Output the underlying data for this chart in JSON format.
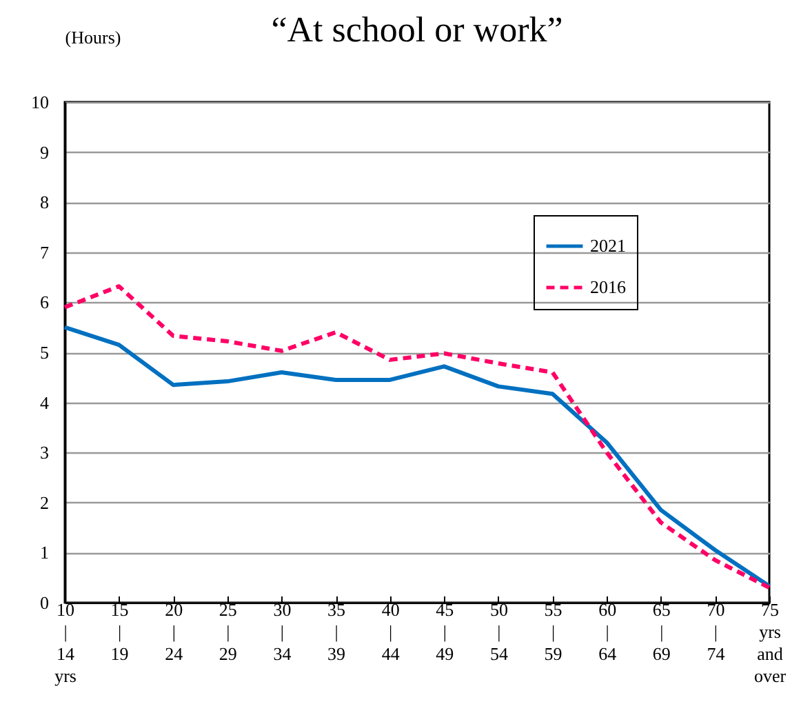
{
  "chart_data": {
    "type": "line",
    "title": "“At school or work”",
    "ylabel": "(Hours)",
    "categories": [
      "10\n|\n14\nyrs",
      "15\n|\n19",
      "20\n|\n24",
      "25\n|\n29",
      "30\n|\n34",
      "35\n|\n39",
      "40\n|\n44",
      "45\n|\n49",
      "50\n|\n54",
      "55\n|\n59",
      "60\n|\n64",
      "65\n|\n69",
      "70\n|\n74",
      "75\nyrs\nand\nover"
    ],
    "series": [
      {
        "name": "2021",
        "color": "#0070c0",
        "line_style": "solid",
        "values": [
          5.5,
          5.15,
          4.35,
          4.42,
          4.6,
          4.45,
          4.45,
          4.72,
          4.32,
          4.17,
          3.2,
          1.85,
          1.05,
          0.33
        ]
      },
      {
        "name": "2016",
        "color": "#ff0066",
        "line_style": "dashed",
        "values": [
          5.9,
          6.32,
          5.33,
          5.22,
          5.03,
          5.4,
          4.85,
          4.98,
          4.78,
          4.6,
          3.0,
          1.6,
          0.85,
          0.3
        ]
      }
    ],
    "ylim": [
      0,
      10
    ],
    "yticks": [
      0,
      1,
      2,
      3,
      4,
      5,
      6,
      7,
      8,
      9,
      10
    ],
    "grid": "y",
    "legend": "top right",
    "marker": "none"
  }
}
